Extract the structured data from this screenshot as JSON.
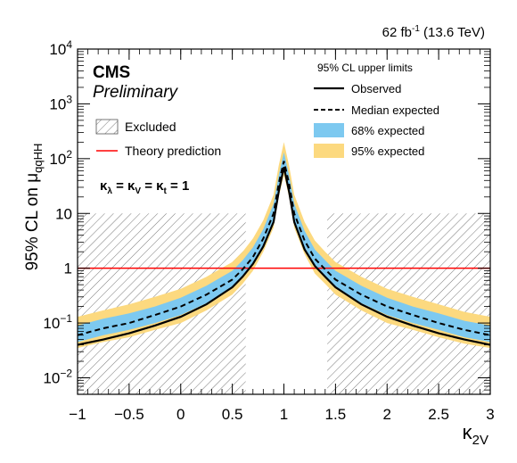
{
  "header": {
    "lumi_prefix": "62 fb",
    "lumi_sup": "-1",
    "lumi_suffix": " (13.6 TeV)"
  },
  "labels": {
    "experiment": "CMS",
    "status": "Preliminary"
  },
  "legend": {
    "title": "95% CL upper limits",
    "observed": "Observed",
    "median": "Median expected",
    "band68": "68% expected",
    "band95": "95% expected",
    "excluded": "Excluded",
    "theory": "Theory prediction"
  },
  "couplings": {
    "k1": "λ",
    "k2": "V",
    "k3": "t",
    "value": "1"
  },
  "colors": {
    "band68": "#7dc9f0",
    "band95": "#fcd97f",
    "theory": "#ff0000",
    "frame": "#000000"
  },
  "chart_data": {
    "type": "line",
    "xlabel": {
      "main": "κ",
      "sub": "2V"
    },
    "ylabel": {
      "main": "95% CL on μ",
      "sub": "qqHH"
    },
    "xlim": [
      -1,
      3
    ],
    "ylim": [
      0.005,
      10000
    ],
    "yscale": "log",
    "xticks": [
      -1,
      -0.5,
      0,
      0.5,
      1,
      1.5,
      2,
      2.5,
      3
    ],
    "xtick_labels": [
      "−1",
      "−0.5",
      "0",
      "0.5",
      "1",
      "1.5",
      "2",
      "2.5",
      "3"
    ],
    "yticks": [
      {
        "value": 0.01,
        "base": "10",
        "exp": "−2"
      },
      {
        "value": 0.1,
        "base": "10",
        "exp": "−1"
      },
      {
        "value": 1,
        "base": "1",
        "exp": ""
      },
      {
        "value": 10,
        "base": "10",
        "exp": ""
      },
      {
        "value": 100,
        "base": "10",
        "exp": "2"
      },
      {
        "value": 1000,
        "base": "10",
        "exp": "3"
      },
      {
        "value": 10000,
        "base": "10",
        "exp": "4"
      }
    ],
    "theory_value": 1,
    "excluded_regions": [
      {
        "x": [
          -1,
          0.63
        ],
        "y": [
          0.005,
          10
        ]
      },
      {
        "x": [
          1.42,
          3
        ],
        "y": [
          0.005,
          10
        ]
      }
    ],
    "x": [
      -1,
      -0.75,
      -0.5,
      -0.25,
      0,
      0.25,
      0.5,
      0.6,
      0.7,
      0.8,
      0.9,
      0.95,
      1,
      1.05,
      1.1,
      1.2,
      1.3,
      1.4,
      1.5,
      1.75,
      2,
      2.25,
      2.5,
      2.75,
      3
    ],
    "observed": [
      0.04,
      0.05,
      0.065,
      0.09,
      0.13,
      0.22,
      0.45,
      0.7,
      1.2,
      2.5,
      7,
      25,
      70,
      25,
      7,
      2.2,
      1.1,
      0.7,
      0.45,
      0.22,
      0.13,
      0.09,
      0.065,
      0.05,
      0.04
    ],
    "expected": [
      0.06,
      0.08,
      0.1,
      0.14,
      0.2,
      0.33,
      0.62,
      0.95,
      1.6,
      3.5,
      10,
      35,
      90,
      35,
      10,
      3.2,
      1.5,
      0.95,
      0.62,
      0.33,
      0.2,
      0.14,
      0.1,
      0.075,
      0.06
    ],
    "band68_low": [
      0.045,
      0.06,
      0.075,
      0.1,
      0.14,
      0.23,
      0.45,
      0.7,
      1.2,
      2.6,
      7.5,
      26,
      65,
      26,
      7.5,
      2.4,
      1.1,
      0.7,
      0.45,
      0.23,
      0.14,
      0.1,
      0.075,
      0.055,
      0.045
    ],
    "band68_high": [
      0.09,
      0.12,
      0.15,
      0.2,
      0.29,
      0.48,
      0.9,
      1.4,
      2.4,
      5.2,
      15,
      50,
      130,
      50,
      15,
      4.8,
      2.2,
      1.4,
      0.9,
      0.48,
      0.29,
      0.2,
      0.15,
      0.11,
      0.09
    ],
    "band95_low": [
      0.035,
      0.045,
      0.055,
      0.075,
      0.1,
      0.17,
      0.33,
      0.52,
      0.9,
      2,
      5.5,
      20,
      50,
      20,
      5.5,
      1.8,
      0.8,
      0.52,
      0.33,
      0.17,
      0.1,
      0.075,
      0.055,
      0.042,
      0.035
    ],
    "band95_high": [
      0.13,
      0.17,
      0.22,
      0.3,
      0.42,
      0.7,
      1.3,
      2,
      3.5,
      7.5,
      22,
      75,
      200,
      75,
      22,
      7,
      3.2,
      2,
      1.3,
      0.7,
      0.42,
      0.3,
      0.22,
      0.16,
      0.13
    ]
  }
}
